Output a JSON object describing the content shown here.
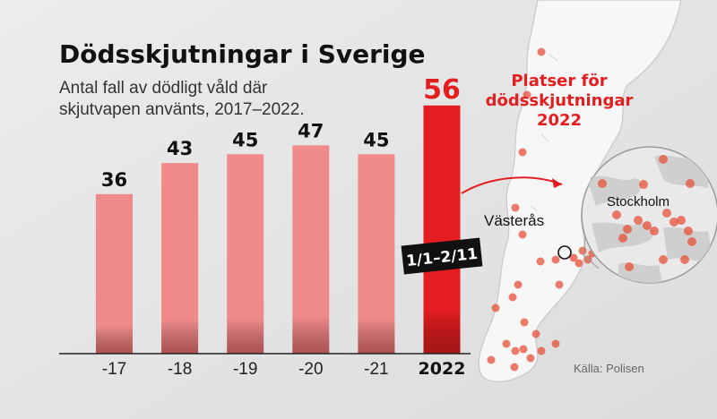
{
  "chart_data": {
    "type": "bar",
    "title": "Dödsskjutningar i Sverige",
    "subtitle_line1": "Antal fall av dödligt våld där",
    "subtitle_line2": "skjutvapen använts, 2017–2022.",
    "categories": [
      "-17",
      "-18",
      "-19",
      "-20",
      "-21",
      "2022"
    ],
    "values": [
      36,
      43,
      45,
      47,
      45,
      56
    ],
    "highlight_index": 5,
    "ylim": [
      0,
      60
    ],
    "grid": false,
    "legend": "none",
    "annotation": "1/1–2/11"
  },
  "map": {
    "title_line1": "Platser för",
    "title_line2": "dödsskjutningar",
    "title_line3": "2022",
    "place_vasteras": "Västerås",
    "place_stockholm": "Stockholm"
  },
  "source": "Källa: Polisen",
  "colors": {
    "bar": "#f08a8a",
    "bar_highlight": "#e41e20",
    "accent_text": "#e41e20",
    "background": "#e6e6e6",
    "map_land": "#f7f7f7",
    "dot": "#e8503a"
  }
}
